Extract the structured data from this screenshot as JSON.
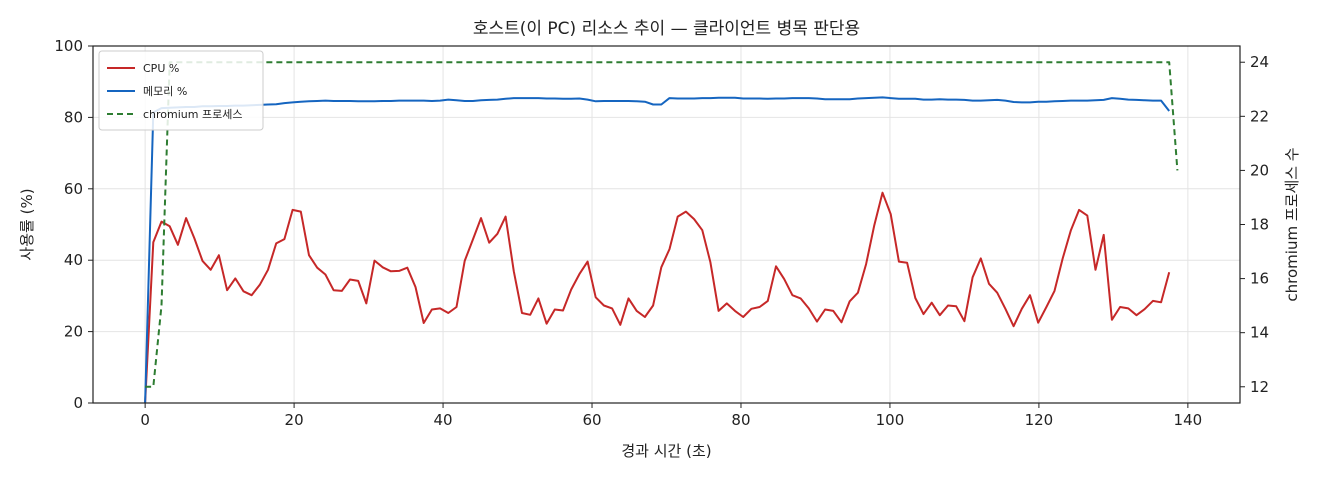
{
  "chart_data": {
    "type": "line",
    "title": "호스트(이 PC) 리소스 추이 — 클라이언트 병목 판단용",
    "xlabel": "경과 시간 (초)",
    "ylabel": "사용률 (%)",
    "y2label": "chromium 프로세스 수",
    "xlim": [
      -7,
      147
    ],
    "ylim": [
      0,
      100
    ],
    "y2lim": [
      11.4,
      24.6
    ],
    "x_ticks": [
      0,
      20,
      40,
      60,
      80,
      100,
      120,
      140
    ],
    "y_ticks": [
      0,
      20,
      40,
      60,
      80,
      100
    ],
    "y2_ticks": [
      12,
      14,
      16,
      18,
      20,
      22,
      24
    ],
    "grid": true,
    "legend_position": "top-left",
    "series": [
      {
        "name": "CPU %",
        "axis": "left",
        "color": "#c62828",
        "style": "solid",
        "points": [
          [
            0,
            0
          ],
          [
            1.1,
            45
          ],
          [
            2.2,
            50.8
          ],
          [
            3.3,
            49.5
          ],
          [
            4.4,
            44.3
          ],
          [
            5.5,
            51.8
          ],
          [
            6.6,
            46.2
          ],
          [
            7.7,
            39.8
          ],
          [
            8.8,
            37.3
          ],
          [
            9.9,
            41.4
          ],
          [
            11,
            31.6
          ],
          [
            12.1,
            34.9
          ],
          [
            13.2,
            31.3
          ],
          [
            14.3,
            30.2
          ],
          [
            15.4,
            33.1
          ],
          [
            16.5,
            37.3
          ],
          [
            17.6,
            44.7
          ],
          [
            18.7,
            45.9
          ],
          [
            19.8,
            54.1
          ],
          [
            20.9,
            53.6
          ],
          [
            22,
            41.4
          ],
          [
            23.1,
            37.9
          ],
          [
            24.2,
            36
          ],
          [
            25.3,
            31.6
          ],
          [
            26.4,
            31.4
          ],
          [
            27.5,
            34.6
          ],
          [
            28.6,
            34.2
          ],
          [
            29.7,
            27.9
          ],
          [
            30.8,
            39.9
          ],
          [
            31.9,
            38
          ],
          [
            33,
            36.9
          ],
          [
            34.1,
            37
          ],
          [
            35.2,
            37.9
          ],
          [
            36.3,
            32.5
          ],
          [
            37.4,
            22.4
          ],
          [
            38.5,
            26.2
          ],
          [
            39.6,
            26.5
          ],
          [
            40.7,
            25.2
          ],
          [
            41.8,
            26.9
          ],
          [
            42.9,
            39.8
          ],
          [
            44,
            45.8
          ],
          [
            45.1,
            51.8
          ],
          [
            46.2,
            44.9
          ],
          [
            47.3,
            47.4
          ],
          [
            48.4,
            52.2
          ],
          [
            49.5,
            36.9
          ],
          [
            50.6,
            25.2
          ],
          [
            51.7,
            24.7
          ],
          [
            52.8,
            29.3
          ],
          [
            53.9,
            22.2
          ],
          [
            55,
            26.2
          ],
          [
            56.1,
            25.9
          ],
          [
            57.2,
            31.8
          ],
          [
            58.3,
            36.1
          ],
          [
            59.4,
            39.6
          ],
          [
            60.5,
            29.6
          ],
          [
            61.6,
            27.3
          ],
          [
            62.7,
            26.5
          ],
          [
            63.8,
            21.9
          ],
          [
            64.9,
            29.3
          ],
          [
            66,
            25.8
          ],
          [
            67.1,
            24.1
          ],
          [
            68.2,
            27.3
          ],
          [
            69.3,
            38
          ],
          [
            70.4,
            43.1
          ],
          [
            71.5,
            52.2
          ],
          [
            72.6,
            53.6
          ],
          [
            73.7,
            51.5
          ],
          [
            74.8,
            48.4
          ],
          [
            75.9,
            39.4
          ],
          [
            77,
            25.8
          ],
          [
            78.1,
            27.9
          ],
          [
            79.2,
            25.8
          ],
          [
            80.3,
            24.1
          ],
          [
            81.4,
            26.4
          ],
          [
            82.5,
            26.9
          ],
          [
            83.6,
            28.6
          ],
          [
            84.7,
            38.3
          ],
          [
            85.8,
            34.7
          ],
          [
            86.9,
            30.2
          ],
          [
            88,
            29.3
          ],
          [
            89.1,
            26.5
          ],
          [
            90.2,
            22.8
          ],
          [
            91.3,
            26.2
          ],
          [
            92.4,
            25.8
          ],
          [
            93.5,
            22.6
          ],
          [
            94.6,
            28.5
          ],
          [
            95.7,
            30.9
          ],
          [
            96.8,
            38.9
          ],
          [
            97.9,
            49.8
          ],
          [
            99,
            58.9
          ],
          [
            100.1,
            52.9
          ],
          [
            101.2,
            39.6
          ],
          [
            102.3,
            39.3
          ],
          [
            103.4,
            29.4
          ],
          [
            104.5,
            24.9
          ],
          [
            105.6,
            28.1
          ],
          [
            106.7,
            24.6
          ],
          [
            107.8,
            27.3
          ],
          [
            108.9,
            27.1
          ],
          [
            110,
            22.9
          ],
          [
            111.1,
            35.2
          ],
          [
            112.2,
            40.5
          ],
          [
            113.3,
            33.4
          ],
          [
            114.4,
            30.9
          ],
          [
            115.5,
            26.4
          ],
          [
            116.6,
            21.5
          ],
          [
            117.7,
            26.4
          ],
          [
            118.8,
            30.2
          ],
          [
            119.9,
            22.5
          ],
          [
            121,
            26.9
          ],
          [
            122.1,
            31.4
          ],
          [
            123.2,
            40.5
          ],
          [
            124.3,
            48.4
          ],
          [
            125.4,
            54.1
          ],
          [
            126.5,
            52.5
          ],
          [
            127.6,
            37.3
          ],
          [
            128.7,
            47.1
          ],
          [
            129.8,
            23.3
          ],
          [
            130.9,
            26.9
          ],
          [
            132,
            26.5
          ],
          [
            133.1,
            24.6
          ],
          [
            134.2,
            26.3
          ],
          [
            135.3,
            28.6
          ],
          [
            136.4,
            28.2
          ],
          [
            137.5,
            36.6
          ]
        ]
      },
      {
        "name": "메모리 %",
        "axis": "left",
        "color": "#1565c0",
        "style": "solid",
        "points": [
          [
            0,
            0
          ],
          [
            1.1,
            81.4
          ],
          [
            2.2,
            82.6
          ],
          [
            3.3,
            82.7
          ],
          [
            4.4,
            82.8
          ],
          [
            5.5,
            82.9
          ],
          [
            6.6,
            82.9
          ],
          [
            7.7,
            83.1
          ],
          [
            8.8,
            83.1
          ],
          [
            9.9,
            83.2
          ],
          [
            11,
            83.2
          ],
          [
            12.1,
            83.3
          ],
          [
            13.2,
            83.3
          ],
          [
            14.3,
            83.4
          ],
          [
            15.4,
            83.5
          ],
          [
            16.5,
            83.6
          ],
          [
            17.6,
            83.7
          ],
          [
            18.7,
            84
          ],
          [
            19.8,
            84.2
          ],
          [
            20.9,
            84.4
          ],
          [
            22,
            84.5
          ],
          [
            23.1,
            84.6
          ],
          [
            24.2,
            84.7
          ],
          [
            25.3,
            84.6
          ],
          [
            26.4,
            84.6
          ],
          [
            27.5,
            84.6
          ],
          [
            28.6,
            84.5
          ],
          [
            29.7,
            84.5
          ],
          [
            30.8,
            84.5
          ],
          [
            31.9,
            84.6
          ],
          [
            33,
            84.6
          ],
          [
            34.1,
            84.7
          ],
          [
            35.2,
            84.7
          ],
          [
            36.3,
            84.7
          ],
          [
            37.4,
            84.7
          ],
          [
            38.5,
            84.6
          ],
          [
            39.6,
            84.7
          ],
          [
            40.7,
            85
          ],
          [
            41.8,
            84.8
          ],
          [
            42.9,
            84.6
          ],
          [
            44,
            84.6
          ],
          [
            45.1,
            84.8
          ],
          [
            46.2,
            84.9
          ],
          [
            47.3,
            85
          ],
          [
            48.4,
            85.2
          ],
          [
            49.5,
            85.4
          ],
          [
            50.6,
            85.4
          ],
          [
            51.7,
            85.4
          ],
          [
            52.8,
            85.4
          ],
          [
            53.9,
            85.3
          ],
          [
            55,
            85.3
          ],
          [
            56.1,
            85.2
          ],
          [
            57.2,
            85.2
          ],
          [
            58.3,
            85.3
          ],
          [
            59.4,
            85
          ],
          [
            60.5,
            84.5
          ],
          [
            61.6,
            84.6
          ],
          [
            62.7,
            84.6
          ],
          [
            63.8,
            84.6
          ],
          [
            64.9,
            84.6
          ],
          [
            66,
            84.5
          ],
          [
            67.1,
            84.4
          ],
          [
            68.2,
            83.6
          ],
          [
            69.3,
            83.6
          ],
          [
            70.4,
            85.4
          ],
          [
            71.5,
            85.3
          ],
          [
            72.6,
            85.3
          ],
          [
            73.7,
            85.3
          ],
          [
            74.8,
            85.4
          ],
          [
            75.9,
            85.4
          ],
          [
            77,
            85.5
          ],
          [
            78.1,
            85.5
          ],
          [
            79.2,
            85.5
          ],
          [
            80.3,
            85.3
          ],
          [
            81.4,
            85.3
          ],
          [
            82.5,
            85.3
          ],
          [
            83.6,
            85.2
          ],
          [
            84.7,
            85.3
          ],
          [
            85.8,
            85.3
          ],
          [
            86.9,
            85.4
          ],
          [
            88,
            85.4
          ],
          [
            89.1,
            85.4
          ],
          [
            90.2,
            85.3
          ],
          [
            91.3,
            85.1
          ],
          [
            92.4,
            85.1
          ],
          [
            93.5,
            85.1
          ],
          [
            94.6,
            85.1
          ],
          [
            95.7,
            85.3
          ],
          [
            96.8,
            85.4
          ],
          [
            97.9,
            85.5
          ],
          [
            99,
            85.6
          ],
          [
            100.1,
            85.4
          ],
          [
            101.2,
            85.2
          ],
          [
            102.3,
            85.2
          ],
          [
            103.4,
            85.2
          ],
          [
            104.5,
            85
          ],
          [
            105.6,
            85
          ],
          [
            106.7,
            85.1
          ],
          [
            107.8,
            85
          ],
          [
            108.9,
            85
          ],
          [
            110,
            84.9
          ],
          [
            111.1,
            84.7
          ],
          [
            112.2,
            84.7
          ],
          [
            113.3,
            84.8
          ],
          [
            114.4,
            84.9
          ],
          [
            115.5,
            84.7
          ],
          [
            116.6,
            84.3
          ],
          [
            117.7,
            84.2
          ],
          [
            118.8,
            84.2
          ],
          [
            119.9,
            84.4
          ],
          [
            121,
            84.4
          ],
          [
            122.1,
            84.5
          ],
          [
            123.2,
            84.6
          ],
          [
            124.3,
            84.7
          ],
          [
            125.4,
            84.7
          ],
          [
            126.5,
            84.7
          ],
          [
            127.6,
            84.8
          ],
          [
            128.7,
            84.9
          ],
          [
            129.8,
            85.4
          ],
          [
            130.9,
            85.2
          ],
          [
            132,
            85
          ],
          [
            133.1,
            84.9
          ],
          [
            134.2,
            84.8
          ],
          [
            135.3,
            84.7
          ],
          [
            136.4,
            84.7
          ],
          [
            137.5,
            81.8
          ]
        ]
      },
      {
        "name": "chromium 프로세스",
        "axis": "right",
        "color": "#2e7d32",
        "style": "dashed",
        "points": [
          [
            0,
            12
          ],
          [
            1.1,
            12
          ],
          [
            2.2,
            15
          ],
          [
            3.3,
            24
          ],
          [
            137.5,
            24
          ],
          [
            138.6,
            20
          ]
        ]
      }
    ]
  }
}
